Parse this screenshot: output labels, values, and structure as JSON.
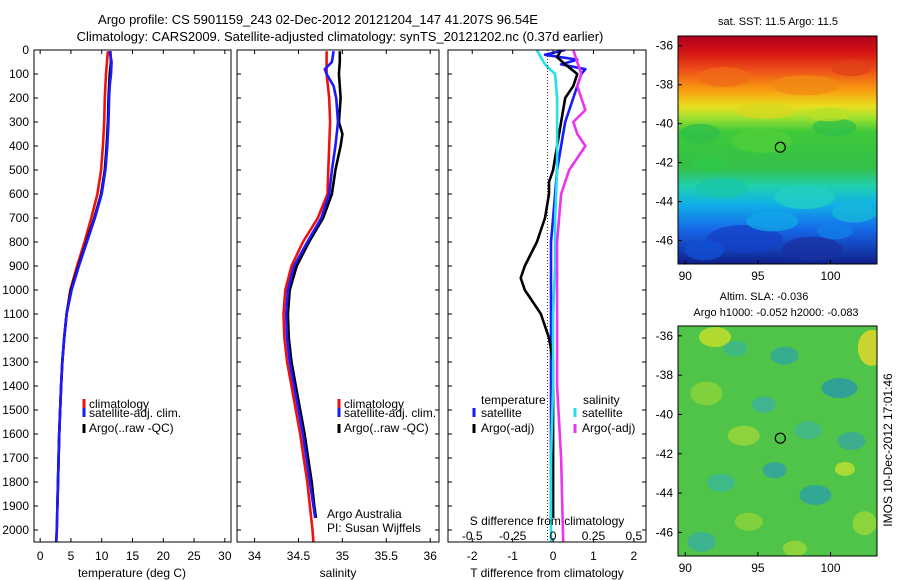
{
  "header": {
    "line1": "Argo profile: CS 5901159_243 02-Dec-2012 20121204_147 41.207S 96.54E",
    "line2": "Climatology: CARS2009. Satellite-adjusted climatology: synTS_20121202.nc (0.37d earlier)"
  },
  "side_stamp": "IMOS 10-Dec-2012 17:01:46",
  "colors": {
    "red": "#ee1111",
    "blue": "#1a1aff",
    "black": "#000000",
    "cyan": "#22e0f0",
    "magenta": "#ee33ee"
  },
  "chart_data": [
    {
      "id": "temperature",
      "type": "line",
      "xlabel": "temperature (deg C)",
      "xlim": [
        -1,
        31
      ],
      "ylim": [
        2050,
        0
      ],
      "xticks": [
        "0",
        "5",
        "10",
        "15",
        "20",
        "25",
        "30"
      ],
      "yticks": [
        "0",
        "100",
        "200",
        "300",
        "400",
        "500",
        "600",
        "700",
        "800",
        "900",
        "1000",
        "1100",
        "1200",
        "1300",
        "1400",
        "1500",
        "1600",
        "1700",
        "1800",
        "1900",
        "2000"
      ],
      "legend": [
        "climatology",
        "satellite-adj. clim.",
        "Argo(..raw -QC)"
      ],
      "series": [
        {
          "name": "climatology",
          "color": "red",
          "depth": [
            5,
            100,
            200,
            300,
            400,
            500,
            600,
            700,
            800,
            900,
            1000,
            1100,
            1200,
            1300,
            1400,
            1600,
            1800,
            2000,
            2050
          ],
          "values": [
            11.0,
            10.7,
            10.5,
            10.4,
            10.2,
            9.9,
            9.3,
            8.3,
            7.2,
            6.0,
            4.9,
            4.3,
            3.9,
            3.6,
            3.4,
            3.1,
            2.9,
            2.7,
            2.6
          ]
        },
        {
          "name": "Argo(..raw -QC)",
          "color": "black",
          "depth": [
            5,
            50,
            100,
            150,
            200,
            300,
            400,
            500,
            600,
            700,
            800,
            900,
            1000,
            1100,
            1200,
            1300,
            1400,
            1600,
            1800,
            1900
          ],
          "values": [
            11.4,
            11.5,
            11.3,
            11.2,
            11.1,
            11.0,
            10.8,
            10.5,
            9.9,
            8.8,
            7.5,
            6.2,
            5.0,
            4.3,
            3.9,
            3.6,
            3.4,
            3.1,
            2.9,
            2.8
          ]
        },
        {
          "name": "satellite-adj. clim.",
          "color": "blue",
          "depth": [
            5,
            50,
            100,
            150,
            200,
            300,
            400,
            500,
            600,
            700,
            800,
            900,
            1000,
            1100,
            1200,
            1300,
            1400,
            1600,
            1800,
            2000,
            2050
          ],
          "values": [
            11.3,
            11.6,
            11.5,
            11.3,
            11.2,
            11.1,
            10.9,
            10.6,
            10.0,
            8.9,
            7.6,
            6.3,
            5.1,
            4.3,
            3.9,
            3.6,
            3.4,
            3.1,
            2.9,
            2.7,
            2.6
          ]
        }
      ]
    },
    {
      "id": "salinity",
      "type": "line",
      "xlabel": "salinity",
      "xlim": [
        33.8,
        36.1
      ],
      "ylim": [
        2050,
        0
      ],
      "xticks": [
        "34",
        "34.5",
        "35",
        "35.5",
        "36"
      ],
      "legend": [
        "climatology",
        "satellite-adj. clim.",
        "Argo(..raw -QC)"
      ],
      "annotation": [
        "Argo Australia",
        "PI: Susan Wijffels"
      ],
      "series": [
        {
          "name": "climatology",
          "color": "red",
          "depth": [
            5,
            100,
            200,
            300,
            400,
            500,
            600,
            700,
            800,
            900,
            1000,
            1100,
            1200,
            1300,
            1400,
            1500,
            1600,
            1700,
            1800,
            1900,
            2000,
            2050
          ],
          "values": [
            34.82,
            34.82,
            34.85,
            34.86,
            34.85,
            34.84,
            34.83,
            34.72,
            34.55,
            34.42,
            34.35,
            34.33,
            34.34,
            34.37,
            34.42,
            34.47,
            34.52,
            34.56,
            34.6,
            34.63,
            34.66,
            34.67
          ]
        },
        {
          "name": "Argo(..raw -QC)",
          "color": "black",
          "depth": [
            5,
            50,
            100,
            150,
            200,
            250,
            300,
            350,
            400,
            450,
            500,
            600,
            700,
            800,
            900,
            1000,
            1100,
            1200,
            1300,
            1400,
            1500,
            1600,
            1700,
            1800,
            1900,
            1950
          ],
          "values": [
            34.97,
            34.97,
            34.96,
            34.97,
            34.98,
            34.97,
            34.96,
            35.0,
            34.98,
            34.95,
            34.92,
            34.88,
            34.78,
            34.62,
            34.48,
            34.4,
            34.38,
            34.39,
            34.42,
            34.47,
            34.52,
            34.57,
            34.61,
            34.65,
            34.68,
            34.7
          ]
        },
        {
          "name": "satellite-adj. clim.",
          "color": "blue",
          "depth": [
            5,
            50,
            80,
            100,
            150,
            200,
            250,
            300,
            400,
            500,
            600,
            700,
            800,
            900,
            1000,
            1100,
            1200,
            1300,
            1400,
            1500,
            1600,
            1700,
            1800,
            1900,
            1950
          ],
          "values": [
            34.9,
            34.88,
            34.8,
            34.82,
            34.9,
            34.93,
            34.94,
            34.95,
            34.92,
            34.88,
            34.85,
            34.76,
            34.6,
            34.45,
            34.38,
            34.36,
            34.37,
            34.4,
            34.45,
            34.5,
            34.55,
            34.59,
            34.63,
            34.67,
            34.69
          ]
        }
      ]
    },
    {
      "id": "difference",
      "type": "line",
      "xlabel": "T difference from climatology",
      "xlabel_top": "S difference from climatology",
      "xlim": [
        -2.6,
        2.3
      ],
      "ylim": [
        2050,
        0
      ],
      "xticks": [
        "-2",
        "-1",
        "0",
        "1",
        "2"
      ],
      "xticks_salinity": [
        "-0.5",
        "-0.25",
        "0",
        "0.25",
        "0.5"
      ],
      "legend_temperature_title": "temperature",
      "legend_salinity_title": "salinity",
      "legend": [
        "satellite",
        "Argo(-adj)",
        "satellite",
        "Argo(-adj)"
      ],
      "series": [
        {
          "name": "temperature satellite",
          "color": "blue",
          "depth": [
            0,
            20,
            40,
            60,
            80,
            100,
            150,
            200,
            300,
            400,
            500,
            600,
            700,
            800,
            900,
            1000,
            1200,
            1400,
            1600,
            1800,
            1950
          ],
          "values": [
            0.3,
            -0.2,
            0.6,
            0.2,
            0.8,
            0.7,
            0.6,
            0.5,
            0.3,
            0.2,
            0.1,
            0.05,
            0.0,
            -0.05,
            -0.05,
            -0.05,
            -0.05,
            -0.05,
            -0.05,
            -0.05,
            -0.05
          ]
        },
        {
          "name": "temperature Argo(-adj)",
          "color": "black",
          "depth": [
            0,
            30,
            60,
            100,
            150,
            200,
            300,
            400,
            500,
            550,
            600,
            650,
            700,
            750,
            800,
            850,
            900,
            950,
            1000,
            1050,
            1100,
            1200,
            1300,
            1400,
            1600,
            1800,
            1950
          ],
          "values": [
            0.2,
            0.1,
            0.3,
            0.6,
            0.5,
            0.3,
            0.2,
            0.1,
            0.0,
            -0.1,
            -0.1,
            -0.15,
            -0.2,
            -0.3,
            -0.4,
            -0.55,
            -0.7,
            -0.8,
            -0.7,
            -0.5,
            -0.3,
            -0.1,
            0.0,
            0.0,
            0.0,
            0.0,
            0.0
          ]
        },
        {
          "name": "salinity satellite",
          "color": "cyan",
          "depth": [
            0,
            30,
            60,
            100,
            200,
            300,
            400,
            500,
            700,
            900,
            1100,
            1400,
            1700,
            2050
          ],
          "values": [
            -0.4,
            -0.3,
            -0.2,
            0.05,
            0.1,
            0.1,
            0.1,
            0.1,
            0.05,
            0.05,
            0.0,
            0.0,
            -0.05,
            -0.05
          ]
        },
        {
          "name": "salinity Argo(-adj)",
          "color": "magenta",
          "depth": [
            0,
            50,
            100,
            150,
            200,
            250,
            300,
            350,
            400,
            450,
            500,
            600,
            700,
            800,
            1000,
            1200,
            1400,
            1700,
            2050
          ],
          "values": [
            0.5,
            0.6,
            0.7,
            0.6,
            0.7,
            0.8,
            0.5,
            0.6,
            0.8,
            0.6,
            0.4,
            0.2,
            0.15,
            0.1,
            0.1,
            0.1,
            0.1,
            0.2,
            0.25
          ]
        }
      ]
    },
    {
      "id": "sst_map",
      "type": "heatmap",
      "title": "sat. SST: 11.5 Argo: 11.5",
      "xticks": [
        "90",
        "95",
        "100"
      ],
      "yticks": [
        "-36",
        "-38",
        "-40",
        "-42",
        "-44",
        "-46"
      ],
      "xlim": [
        89.5,
        103.2
      ],
      "ylim": [
        -47.2,
        -35.5
      ],
      "marker": [
        96.54,
        -41.207
      ]
    },
    {
      "id": "sla_map",
      "type": "heatmap",
      "title": "Altim. SLA: -0.036",
      "subtitle": "Argo h1000: -0.052 h2000: -0.083",
      "xticks": [
        "90",
        "95",
        "100"
      ],
      "yticks": [
        "-36",
        "-38",
        "-40",
        "-42",
        "-44",
        "-46"
      ],
      "xlim": [
        89.5,
        103.2
      ],
      "ylim": [
        -47.2,
        -35.5
      ],
      "marker": [
        96.54,
        -41.207
      ]
    }
  ]
}
